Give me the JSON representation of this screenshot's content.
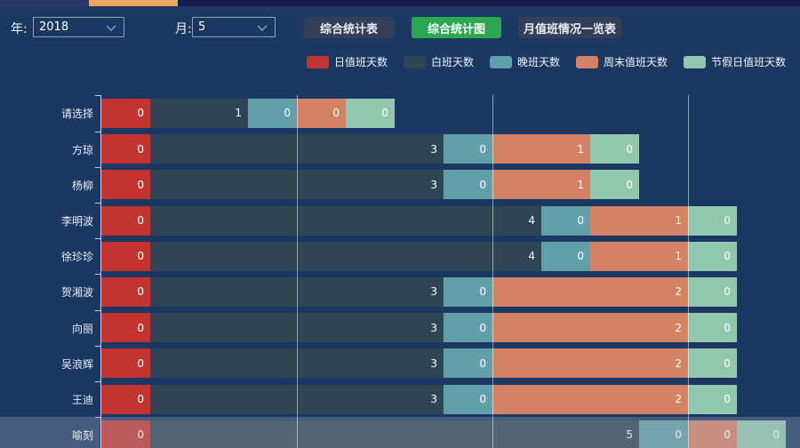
{
  "colors": {
    "background": "#1b3863",
    "tab_strip_active": "#eda65f",
    "button_default_bg": "#333f58",
    "button_active_bg": "#2aa751",
    "select_border": "#93a1b5"
  },
  "toolbar": {
    "year_label": "年:",
    "year_value": "2018",
    "month_label": "月:",
    "month_value": "5",
    "buttons": [
      {
        "label": "综合统计表",
        "state": "default"
      },
      {
        "label": "综合统计图",
        "state": "active"
      },
      {
        "label": "月值班情况一览表",
        "state": "default"
      }
    ]
  },
  "chart_data": {
    "type": "bar",
    "orientation": "horizontal",
    "stacked": true,
    "legend_position": "top",
    "grid": true,
    "grid_unit_interval": 2,
    "min_segment_units": 0.5,
    "categories": [
      "请选择",
      "方琼",
      "杨柳",
      "李明波",
      "徐珍珍",
      "贺湘波",
      "向丽",
      "吴浪辉",
      "王迪",
      "喻刻"
    ],
    "series": [
      {
        "name": "日值班天数",
        "color": "#c23531",
        "values": [
          0,
          0,
          0,
          0,
          0,
          0,
          0,
          0,
          0,
          0
        ]
      },
      {
        "name": "白班天数",
        "color": "#2f4554",
        "values": [
          1,
          3,
          3,
          4,
          4,
          3,
          3,
          3,
          3,
          5
        ]
      },
      {
        "name": "晚班天数",
        "color": "#61a0a8",
        "values": [
          0,
          0,
          0,
          0,
          0,
          0,
          0,
          0,
          0,
          0
        ]
      },
      {
        "name": "周末值班天数",
        "color": "#d48265",
        "values": [
          0,
          1,
          1,
          1,
          1,
          2,
          2,
          2,
          2,
          0
        ]
      },
      {
        "name": "节假日值班天数",
        "color": "#91c7ae",
        "values": [
          0,
          0,
          0,
          0,
          0,
          0,
          0,
          0,
          0,
          0
        ]
      }
    ],
    "highlighted_category": "喻刻"
  }
}
